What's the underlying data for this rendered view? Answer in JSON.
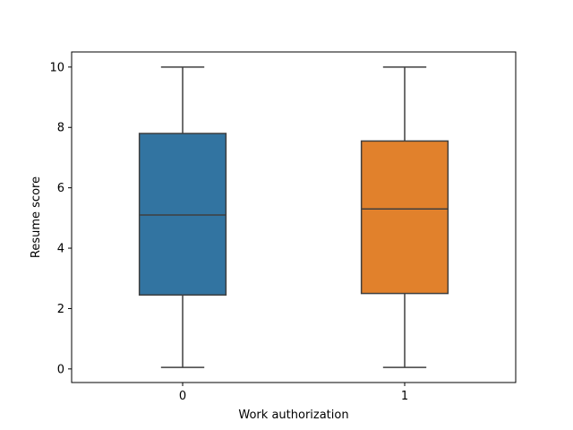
{
  "chart_data": {
    "type": "boxplot",
    "title": "",
    "xlabel": "Work authorization",
    "ylabel": "Resume score",
    "categories": [
      "0",
      "1"
    ],
    "boxes": [
      {
        "category": "0",
        "min": 0.05,
        "q1": 2.45,
        "median": 5.1,
        "q3": 7.8,
        "max": 10.0,
        "color": "#3274a1"
      },
      {
        "category": "1",
        "min": 0.05,
        "q1": 2.5,
        "median": 5.3,
        "q3": 7.55,
        "max": 10.0,
        "color": "#e1812c"
      }
    ],
    "ylim": [
      -0.45,
      10.5
    ],
    "yticks": [
      0,
      2,
      4,
      6,
      8,
      10
    ],
    "grid": false,
    "legend": "none"
  },
  "colors": {
    "box_line": "#3f3f3f",
    "axes": "#000000"
  }
}
